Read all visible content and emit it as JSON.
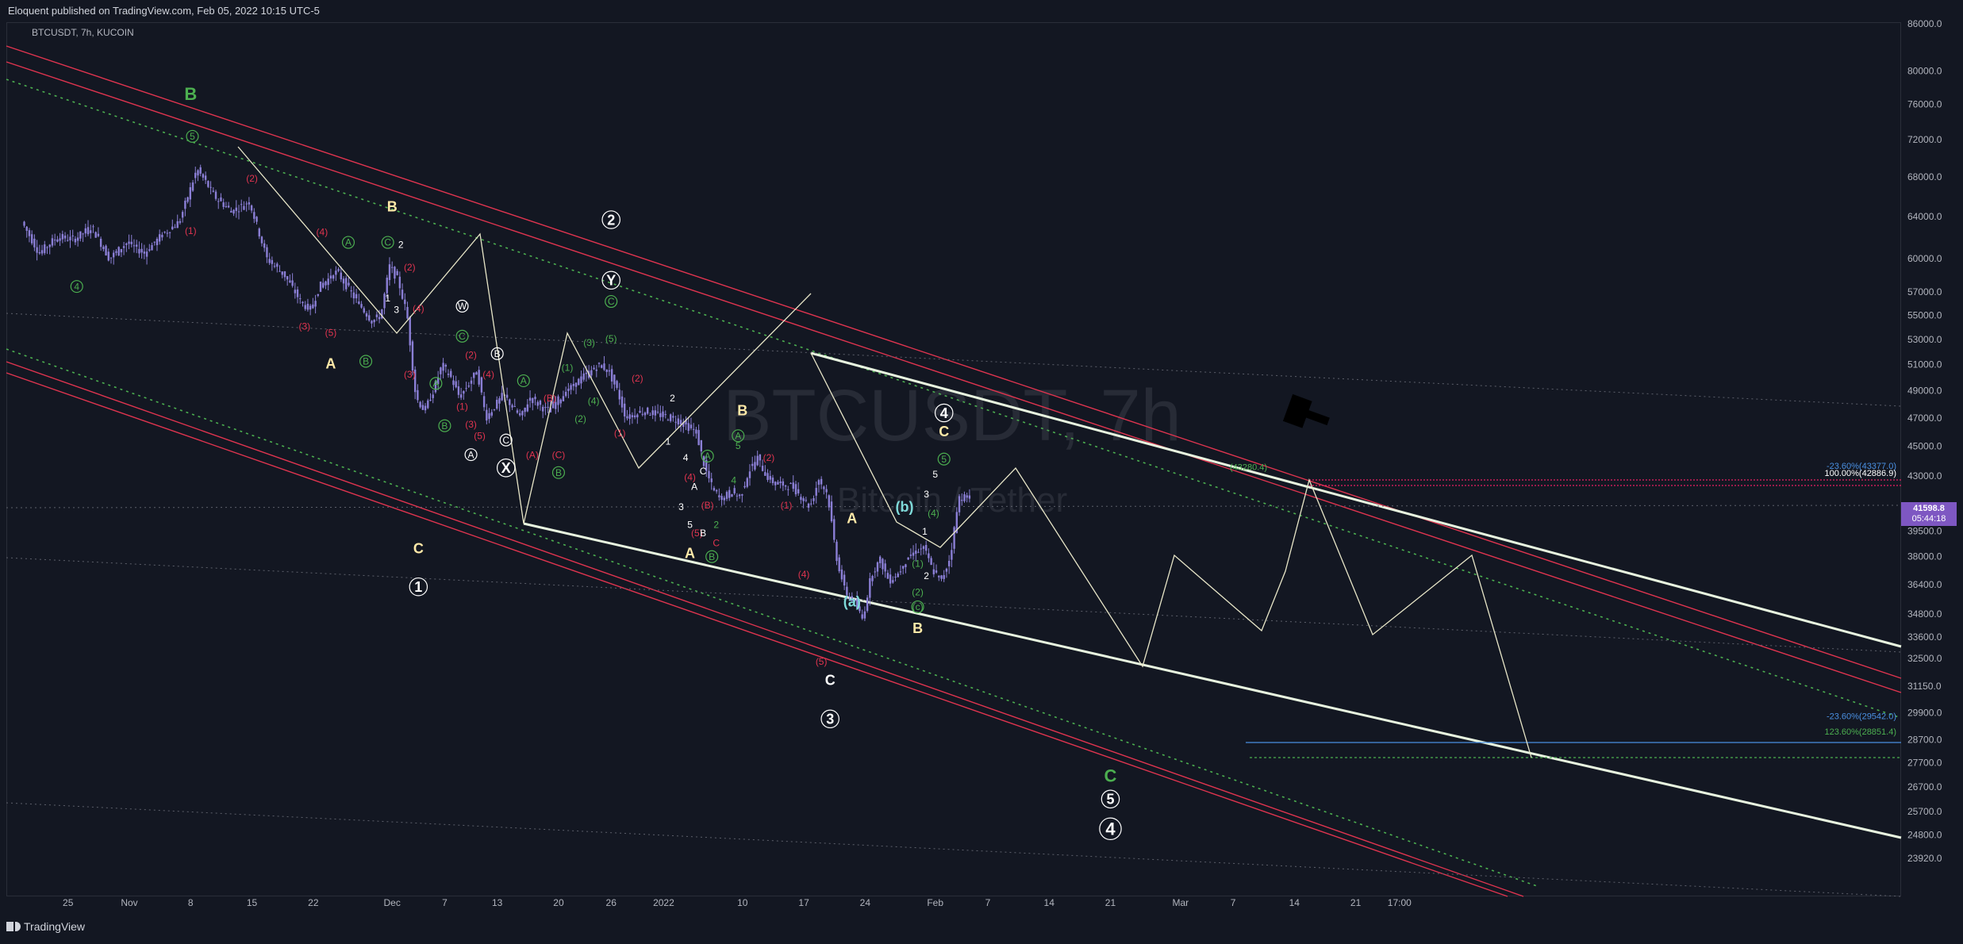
{
  "header": {
    "published_line": "Eloquent published on TradingView.com, Feb 05, 2022 10:15 UTC-5",
    "symbol_line": "BTCUSDT, 7h, KUCOIN"
  },
  "watermark": {
    "symbol": "BTCUSDT, 7h",
    "subtitle": "Bitcoin / Tether"
  },
  "footer": {
    "brand": "TradingView"
  },
  "last_price": {
    "price": "41598.8",
    "countdown": "05:44:18",
    "color": "#7e57c2"
  },
  "colors": {
    "background": "#131722",
    "candles": "#8b7fd6",
    "channel_red": "#e0344f",
    "channel_white": "#e8f5e0",
    "dotted_green": "#4caf50",
    "label_yellow": "#ffe9a8",
    "label_red": "#e0344f",
    "label_green": "#4caf50",
    "label_cyan": "#7fdbda",
    "label_white": "#ffffff"
  },
  "fib_labels": [
    {
      "text": "-23.60%(43377.0)",
      "price": 43377.0,
      "color": "#4a90e2"
    },
    {
      "text": "100.00%(42886.9)",
      "price": 42886.9,
      "color": "#ffffff"
    },
    {
      "text": "-23.60%(29542.0)",
      "price": 29542.0,
      "color": "#4a90e2"
    },
    {
      "text": "123.60%(28851.4)",
      "price": 28851.4,
      "color": "#4caf50"
    },
    {
      "text": "(43280.4)",
      "price": 43280.4,
      "color": "#4caf50"
    }
  ],
  "chart_data": {
    "type": "candlestick",
    "title": "",
    "xlabel": "",
    "ylabel": "",
    "scale": "log",
    "ylim": [
      22900,
      86000
    ],
    "y_ticks": [
      "86000.0",
      "80000.0",
      "76000.0",
      "72000.0",
      "68000.0",
      "64000.0",
      "60000.0",
      "57000.0",
      "55000.0",
      "53000.0",
      "51000.0",
      "49000.0",
      "47000.0",
      "45000.0",
      "43000.0",
      "39500.0",
      "38000.0",
      "36400.0",
      "34800.0",
      "33600.0",
      "32500.0",
      "31150.0",
      "29900.0",
      "28700.0",
      "27700.0",
      "26700.0",
      "25700.0",
      "24800.0",
      "23920.0"
    ],
    "y_tick_values": [
      86000,
      80000,
      76000,
      72000,
      68000,
      64000,
      60000,
      57000,
      55000,
      53000,
      51000,
      49000,
      47000,
      45000,
      43000,
      39500,
      38000,
      36400,
      34800,
      33600,
      32500,
      31150,
      29900,
      28700,
      27700,
      26700,
      25700,
      24800,
      23920
    ],
    "x_ticks": [
      "25",
      "Nov",
      "8",
      "15",
      "22",
      "Dec",
      "7",
      "13",
      "20",
      "26",
      "2022",
      "10",
      "17",
      "24",
      "Feb",
      "7",
      "14",
      "21",
      "Mar",
      "7",
      "14",
      "21",
      "17:00"
    ],
    "x_tick_days": [
      -7,
      0,
      7,
      14,
      21,
      30,
      36,
      42,
      49,
      55,
      61,
      70,
      77,
      84,
      92,
      98,
      105,
      112,
      120,
      126,
      133,
      140,
      145
    ],
    "date_origin": "2021-11-01",
    "price_path": [
      [
        -12,
        63500
      ],
      [
        -10,
        60500
      ],
      [
        -8,
        62000
      ],
      [
        -6,
        61800
      ],
      [
        -4,
        63000
      ],
      [
        -2,
        60000
      ],
      [
        0,
        61500
      ],
      [
        2,
        60500
      ],
      [
        4,
        62200
      ],
      [
        6,
        63500
      ],
      [
        8,
        68800
      ],
      [
        9,
        67500
      ],
      [
        10,
        66000
      ],
      [
        12,
        64500
      ],
      [
        14,
        65500
      ],
      [
        16,
        60000
      ],
      [
        18,
        58500
      ],
      [
        20,
        56000
      ],
      [
        21,
        55500
      ],
      [
        22,
        57500
      ],
      [
        24,
        58800
      ],
      [
        26,
        56500
      ],
      [
        28,
        54500
      ],
      [
        29,
        55000
      ],
      [
        30,
        59300
      ],
      [
        31,
        58000
      ],
      [
        32,
        55000
      ],
      [
        33,
        48500
      ],
      [
        34,
        47500
      ],
      [
        35,
        49000
      ],
      [
        36,
        51000
      ],
      [
        37,
        50000
      ],
      [
        38,
        48500
      ],
      [
        40,
        50500
      ],
      [
        41,
        47000
      ],
      [
        43,
        48700
      ],
      [
        45,
        47000
      ],
      [
        46,
        48500
      ],
      [
        48,
        47500
      ],
      [
        50,
        48800
      ],
      [
        52,
        50000
      ],
      [
        54,
        51000
      ],
      [
        55,
        50500
      ],
      [
        56,
        49000
      ],
      [
        57,
        47000
      ],
      [
        59,
        47500
      ],
      [
        61,
        47200
      ],
      [
        63,
        46800
      ],
      [
        65,
        46000
      ],
      [
        66,
        43500
      ],
      [
        67,
        42000
      ],
      [
        68,
        41500
      ],
      [
        69,
        42000
      ],
      [
        70,
        41600
      ],
      [
        71,
        43300
      ],
      [
        72,
        44200
      ],
      [
        73,
        43000
      ],
      [
        74,
        42500
      ],
      [
        76,
        42300
      ],
      [
        78,
        41000
      ],
      [
        79,
        42800
      ],
      [
        80,
        41800
      ],
      [
        81,
        38000
      ],
      [
        82,
        36000
      ],
      [
        83,
        35500
      ],
      [
        84,
        34500
      ],
      [
        85,
        37000
      ],
      [
        86,
        37800
      ],
      [
        87,
        36600
      ],
      [
        88,
        37000
      ],
      [
        89,
        37800
      ],
      [
        90,
        38300
      ],
      [
        91,
        38500
      ],
      [
        92,
        37200
      ],
      [
        93,
        36600
      ],
      [
        94,
        38000
      ],
      [
        95,
        41600
      ],
      [
        96,
        41598.8
      ]
    ]
  },
  "wave_labels": [
    {
      "text": "B",
      "day": 7,
      "price": 76500,
      "color": "#4caf50",
      "size": "big"
    },
    {
      "text": "5",
      "day": 7.2,
      "price": 72000,
      "color": "#4caf50",
      "circled": true
    },
    {
      "text": "4",
      "day": -6,
      "price": 57200,
      "color": "#4caf50",
      "circled": true
    },
    {
      "text": "(1)",
      "day": 7,
      "price": 62300,
      "color": "#e0344f"
    },
    {
      "text": "(2)",
      "day": 14,
      "price": 67500,
      "color": "#e0344f"
    },
    {
      "text": "(4)",
      "day": 22,
      "price": 62200,
      "color": "#e0344f"
    },
    {
      "text": "(3)",
      "day": 20,
      "price": 53800,
      "color": "#e0344f"
    },
    {
      "text": "(5)",
      "day": 23,
      "price": 53300,
      "color": "#e0344f"
    },
    {
      "text": "A",
      "day": 23,
      "price": 50700,
      "color": "#ffe9a8",
      "size": "mid"
    },
    {
      "text": "A",
      "day": 25,
      "price": 61200,
      "color": "#4caf50",
      "circled": true
    },
    {
      "text": "B",
      "day": 27,
      "price": 51000,
      "color": "#4caf50",
      "circled": true
    },
    {
      "text": "B",
      "day": 30,
      "price": 64500,
      "color": "#ffe9a8",
      "size": "mid"
    },
    {
      "text": "C",
      "day": 29.5,
      "price": 61200,
      "color": "#4caf50",
      "circled": true
    },
    {
      "text": "2",
      "day": 31,
      "price": 61000,
      "color": "#ffffff"
    },
    {
      "text": "1",
      "day": 29.5,
      "price": 56200,
      "color": "#ffffff"
    },
    {
      "text": "(2)",
      "day": 32,
      "price": 58900,
      "color": "#e0344f"
    },
    {
      "text": "3",
      "day": 30.5,
      "price": 55200,
      "color": "#ffffff"
    },
    {
      "text": "(3)",
      "day": 32,
      "price": 50000,
      "color": "#e0344f"
    },
    {
      "text": "(4)",
      "day": 33,
      "price": 55300,
      "color": "#e0344f"
    },
    {
      "text": "C",
      "day": 33,
      "price": 38200,
      "color": "#ffe9a8",
      "size": "mid"
    },
    {
      "text": "1",
      "day": 33,
      "price": 36000,
      "color": "#ffffff",
      "circled": true,
      "size": "mid"
    },
    {
      "text": "W",
      "day": 38,
      "price": 55500,
      "color": "#ffffff",
      "circled": true
    },
    {
      "text": "A",
      "day": 35,
      "price": 49300,
      "color": "#4caf50",
      "circled": true
    },
    {
      "text": "B",
      "day": 36,
      "price": 46200,
      "color": "#4caf50",
      "circled": true
    },
    {
      "text": "C",
      "day": 38,
      "price": 53000,
      "color": "#4caf50",
      "circled": true
    },
    {
      "text": "(2)",
      "day": 39,
      "price": 51500,
      "color": "#e0344f"
    },
    {
      "text": "(4)",
      "day": 41,
      "price": 50000,
      "color": "#e0344f"
    },
    {
      "text": "(1)",
      "day": 38,
      "price": 47600,
      "color": "#e0344f"
    },
    {
      "text": "(3)",
      "day": 39,
      "price": 46300,
      "color": "#e0344f"
    },
    {
      "text": "(5)",
      "day": 40,
      "price": 45500,
      "color": "#e0344f"
    },
    {
      "text": "A",
      "day": 39,
      "price": 44200,
      "color": "#ffffff",
      "circled": true
    },
    {
      "text": "B",
      "day": 42,
      "price": 51600,
      "color": "#ffffff",
      "circled": true
    },
    {
      "text": "C",
      "day": 43,
      "price": 45200,
      "color": "#ffffff",
      "circled": true
    },
    {
      "text": "X",
      "day": 43,
      "price": 43200,
      "color": "#ffffff",
      "circled": true,
      "size": "mid"
    },
    {
      "text": "A",
      "day": 45,
      "price": 49500,
      "color": "#4caf50",
      "circled": true
    },
    {
      "text": "(A)",
      "day": 46,
      "price": 44200,
      "color": "#e0344f"
    },
    {
      "text": "(B)",
      "day": 48,
      "price": 48200,
      "color": "#e0344f"
    },
    {
      "text": "(C)",
      "day": 49,
      "price": 44200,
      "color": "#e0344f"
    },
    {
      "text": "B",
      "day": 49,
      "price": 43000,
      "color": "#4caf50",
      "circled": true
    },
    {
      "text": "(1)",
      "day": 50,
      "price": 50500,
      "color": "#4caf50"
    },
    {
      "text": "(2)",
      "day": 51.5,
      "price": 46700,
      "color": "#4caf50"
    },
    {
      "text": "(4)",
      "day": 53,
      "price": 48000,
      "color": "#4caf50"
    },
    {
      "text": "(3)",
      "day": 52.5,
      "price": 52500,
      "color": "#4caf50"
    },
    {
      "text": "(5)",
      "day": 55,
      "price": 52800,
      "color": "#4caf50"
    },
    {
      "text": "C",
      "day": 55,
      "price": 55900,
      "color": "#4caf50",
      "circled": true
    },
    {
      "text": "Y",
      "day": 55,
      "price": 57600,
      "color": "#ffffff",
      "circled": true,
      "size": "mid"
    },
    {
      "text": "2",
      "day": 55,
      "price": 63200,
      "color": "#ffffff",
      "circled": true,
      "size": "mid"
    },
    {
      "text": "(2)",
      "day": 58,
      "price": 49700,
      "color": "#e0344f"
    },
    {
      "text": "(1)",
      "day": 56,
      "price": 45700,
      "color": "#e0344f"
    },
    {
      "text": "2",
      "day": 62,
      "price": 48200,
      "color": "#ffffff"
    },
    {
      "text": "1",
      "day": 61.5,
      "price": 45100,
      "color": "#ffffff"
    },
    {
      "text": "4",
      "day": 63.5,
      "price": 44000,
      "color": "#ffffff"
    },
    {
      "text": "3",
      "day": 63,
      "price": 40800,
      "color": "#ffffff"
    },
    {
      "text": "5",
      "day": 64,
      "price": 39700,
      "color": "#ffffff"
    },
    {
      "text": "A",
      "day": 64.5,
      "price": 42100,
      "color": "#ffffff"
    },
    {
      "text": "C",
      "day": 65.5,
      "price": 43100,
      "color": "#ffffff"
    },
    {
      "text": "(4)",
      "day": 64,
      "price": 42700,
      "color": "#e0344f"
    },
    {
      "text": "(5)",
      "day": 64.8,
      "price": 39200,
      "color": "#e0344f"
    },
    {
      "text": "B",
      "day": 65.5,
      "price": 39200,
      "color": "#ffffff"
    },
    {
      "text": "C",
      "day": 67,
      "price": 38600,
      "color": "#e0344f"
    },
    {
      "text": "A",
      "day": 64,
      "price": 37900,
      "color": "#ffe9a8",
      "size": "mid"
    },
    {
      "text": "B",
      "day": 66.5,
      "price": 37800,
      "color": "#4caf50",
      "circled": true
    },
    {
      "text": "A",
      "day": 66,
      "price": 44100,
      "color": "#4caf50",
      "circled": true
    },
    {
      "text": "2",
      "day": 67,
      "price": 39700,
      "color": "#4caf50"
    },
    {
      "text": "(B)",
      "day": 66,
      "price": 40900,
      "color": "#e0344f"
    },
    {
      "text": "B",
      "day": 70,
      "price": 47200,
      "color": "#ffe9a8",
      "size": "mid"
    },
    {
      "text": "A",
      "day": 69.5,
      "price": 45500,
      "color": "#4caf50",
      "circled": true
    },
    {
      "text": "5",
      "day": 69.5,
      "price": 44800,
      "color": "#4caf50"
    },
    {
      "text": "4",
      "day": 69,
      "price": 42500,
      "color": "#4caf50"
    },
    {
      "text": "(2)",
      "day": 73,
      "price": 44000,
      "color": "#e0344f"
    },
    {
      "text": "(1)",
      "day": 75,
      "price": 40900,
      "color": "#e0344f"
    },
    {
      "text": "(4)",
      "day": 77,
      "price": 36800,
      "color": "#e0344f"
    },
    {
      "text": "(5)",
      "day": 79,
      "price": 32200,
      "color": "#e0344f"
    },
    {
      "text": "C",
      "day": 80,
      "price": 31200,
      "color": "#ffffff",
      "size": "mid"
    },
    {
      "text": "3",
      "day": 80,
      "price": 29400,
      "color": "#ffffff",
      "circled": true,
      "size": "mid"
    },
    {
      "text": "A",
      "day": 82.5,
      "price": 40000,
      "color": "#ffe9a8",
      "size": "mid"
    },
    {
      "text": "(a)",
      "day": 82.5,
      "price": 35200,
      "color": "#7fdbda",
      "size": "mid"
    },
    {
      "text": "(b)",
      "day": 88.5,
      "price": 40700,
      "color": "#7fdbda",
      "size": "mid"
    },
    {
      "text": "(1)",
      "day": 90,
      "price": 37400,
      "color": "#4caf50"
    },
    {
      "text": "2",
      "day": 91,
      "price": 36700,
      "color": "#ffffff"
    },
    {
      "text": "(2)",
      "day": 90,
      "price": 35800,
      "color": "#4caf50"
    },
    {
      "text": "(c)",
      "day": 90,
      "price": 35000,
      "color": "#4caf50",
      "circled": true
    },
    {
      "text": "B",
      "day": 90,
      "price": 33800,
      "color": "#ffe9a8",
      "size": "mid"
    },
    {
      "text": "1",
      "day": 90.8,
      "price": 39300,
      "color": "#ffffff"
    },
    {
      "text": "3",
      "day": 91,
      "price": 41600,
      "color": "#ffffff"
    },
    {
      "text": "(4)",
      "day": 91.8,
      "price": 40400,
      "color": "#4caf50"
    },
    {
      "text": "5",
      "day": 92,
      "price": 42900,
      "color": "#ffffff"
    },
    {
      "text": "C",
      "day": 93,
      "price": 45700,
      "color": "#ffe9a8",
      "size": "mid"
    },
    {
      "text": "4",
      "day": 93,
      "price": 47000,
      "color": "#ffffff",
      "circled": true,
      "size": "mid"
    },
    {
      "text": "5",
      "day": 93,
      "price": 43900,
      "color": "#4caf50",
      "circled": true
    },
    {
      "text": "C",
      "day": 112,
      "price": 26900,
      "color": "#4caf50",
      "size": "big"
    },
    {
      "text": "5",
      "day": 112,
      "price": 26000,
      "color": "#ffffff",
      "circled": true,
      "size": "mid"
    },
    {
      "text": "4",
      "day": 112,
      "price": 24800,
      "color": "#ffffff",
      "circled": true,
      "size": "big"
    }
  ]
}
